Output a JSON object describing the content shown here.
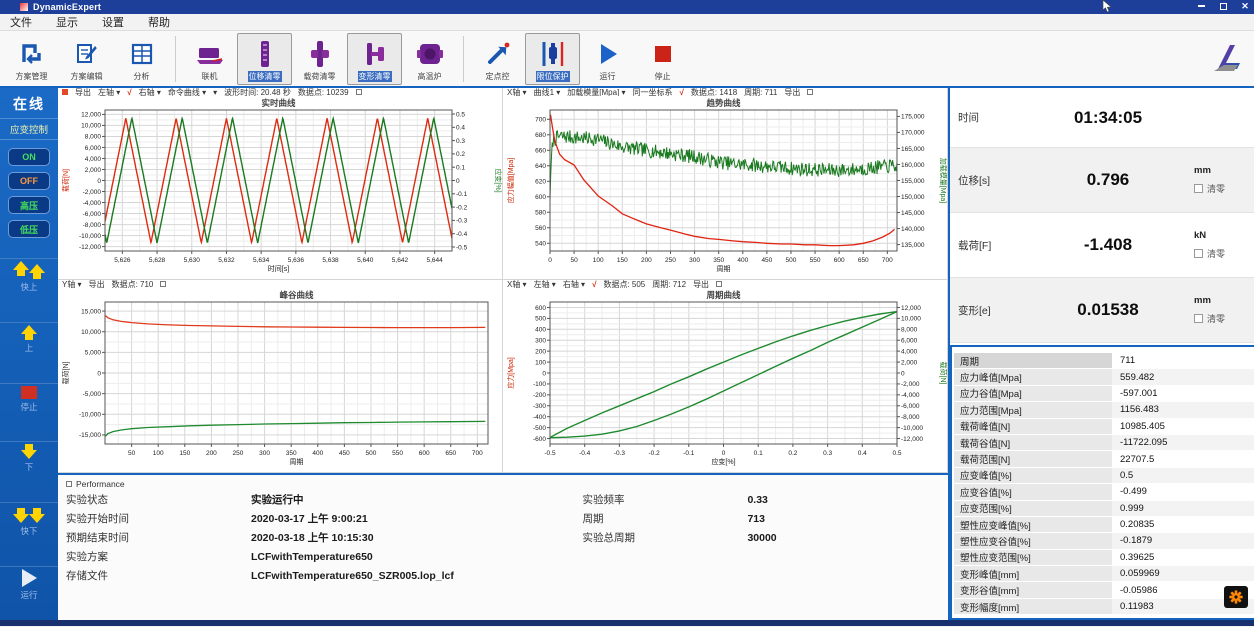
{
  "titlebar": {
    "app_title": "DynamicExpert"
  },
  "menubar": {
    "items": [
      {
        "name": "file",
        "label": "文件"
      },
      {
        "name": "display",
        "label": "显示"
      },
      {
        "name": "settings",
        "label": "设置"
      },
      {
        "name": "help",
        "label": "帮助"
      }
    ]
  },
  "toolbar": {
    "groups": [
      [
        {
          "name": "scheme-manage",
          "label": "方案管理",
          "selected": false
        },
        {
          "name": "scheme-edit",
          "label": "方案编辑",
          "selected": false
        },
        {
          "name": "analysis",
          "label": "分析",
          "selected": false
        }
      ],
      [
        {
          "name": "connect",
          "label": "联机",
          "selected": false
        },
        {
          "name": "displacement-zero",
          "label": "位移清零",
          "selected": true
        },
        {
          "name": "load-zero",
          "label": "载荷清零",
          "selected": false
        },
        {
          "name": "deform-zero",
          "label": "变形清零",
          "selected": true
        },
        {
          "name": "furnace",
          "label": "高温炉",
          "selected": false
        }
      ],
      [
        {
          "name": "setpoint-control",
          "label": "定点控",
          "selected": false
        },
        {
          "name": "limit-protection",
          "label": "限位保护",
          "selected": true
        },
        {
          "name": "run",
          "label": "运行",
          "selected": false
        },
        {
          "name": "stop",
          "label": "停止",
          "selected": false
        }
      ]
    ]
  },
  "sidebar": {
    "mode_label": "在线",
    "control_label": "应变控制",
    "buttons": [
      {
        "label": "ON",
        "color": "#45e05a"
      },
      {
        "label": "OFF",
        "color": "#ff9a3c"
      },
      {
        "label": "高压",
        "color": "#45e05a"
      },
      {
        "label": "低压",
        "color": "#45e05a"
      }
    ],
    "jogs": [
      {
        "name": "fast-up",
        "label": "快上"
      },
      {
        "name": "up",
        "label": "上"
      },
      {
        "name": "stop",
        "label": "停止"
      },
      {
        "name": "down",
        "label": "下"
      },
      {
        "name": "fast-down",
        "label": "快下"
      },
      {
        "name": "run",
        "label": "运行"
      }
    ]
  },
  "chart_data": [
    {
      "id": "realtime",
      "type": "line",
      "title": "实时曲线",
      "lead_square": true,
      "toolbar_parts": [
        "导出",
        "左轴 ▾",
        {
          "t": "√",
          "red": true
        },
        "右轴 ▾",
        "命令曲线 ▾",
        "▾",
        "波形时间: 20.48 秒",
        "数据点: 10239"
      ],
      "xlabel": "时间[s]",
      "x_min": 5625,
      "x_max": 5645,
      "x_step": 2,
      "x_tick_start": 5626,
      "left": {
        "label": "载荷[N]",
        "min": -12800,
        "max": 12800,
        "step": 2000,
        "tick_start": -12000,
        "color": "#cc2200"
      },
      "right": {
        "label": "应变[%]",
        "min": -0.53,
        "max": 0.53,
        "step": 0.1,
        "tick_start": -0.5,
        "color": "#1a7a1f"
      },
      "series": [
        {
          "name": "载荷",
          "axis": "left",
          "color": "#dd2b10",
          "width": 1.4,
          "gen": "triangle",
          "amplitude": 11300,
          "period": 2.9,
          "peak_x": 5626.2
        },
        {
          "name": "应变",
          "axis": "right",
          "color": "#1a7a1f",
          "width": 1.4,
          "gen": "triangle",
          "amplitude": 0.47,
          "period": 2.9,
          "peak_x": 5626.55
        }
      ]
    },
    {
      "id": "trend",
      "type": "line",
      "title": "趋势曲线",
      "lead_square": false,
      "toolbar_parts": [
        "X轴 ▾",
        "曲线1 ▾",
        "加载模量[Mpa] ▾",
        "同一坐标系",
        {
          "t": "√",
          "red": true
        },
        "数据点: 1418",
        "周期: 711",
        "导出"
      ],
      "xlabel": "周期",
      "x_min": 0,
      "x_max": 720,
      "x_step": 50,
      "x_tick_start": 0,
      "left": {
        "label": "应力幅值[Mpa]",
        "min": 530,
        "max": 712,
        "step": 20,
        "tick_start": 540,
        "color": "#cc2200"
      },
      "right": {
        "label": "加载模量[Mpa]",
        "min": 133000,
        "max": 177000,
        "step": 5000,
        "tick_start": 135000,
        "color": "#1a7a1f"
      },
      "series": [
        {
          "name": "加载模量",
          "axis": "right",
          "color": "#1a7a1f",
          "width": 1,
          "gen": "noisy",
          "noise": 2200,
          "seed": 7,
          "samples": 470,
          "points": [
            [
              0,
              150000
            ],
            [
              1,
              174500
            ],
            [
              2,
              137500
            ],
            [
              3,
              162000
            ],
            [
              6,
              167500
            ],
            [
              20,
              168800
            ],
            [
              60,
              168300
            ],
            [
              100,
              167900
            ],
            [
              120,
              166800
            ],
            [
              150,
              165500
            ],
            [
              180,
              164800
            ],
            [
              220,
              164000
            ],
            [
              260,
              163200
            ],
            [
              300,
              162400
            ],
            [
              340,
              161000
            ],
            [
              380,
              160200
            ],
            [
              420,
              159800
            ],
            [
              460,
              159300
            ],
            [
              500,
              158800
            ],
            [
              540,
              158400
            ],
            [
              580,
              158200
            ],
            [
              620,
              158300
            ],
            [
              660,
              158800
            ],
            [
              710,
              159600
            ]
          ]
        },
        {
          "name": "应力幅值",
          "axis": "left",
          "color": "#e02412",
          "width": 1.3,
          "points": [
            [
              1,
              706
            ],
            [
              5,
              690
            ],
            [
              10,
              672
            ],
            [
              20,
              655
            ],
            [
              30,
              648
            ],
            [
              50,
              641
            ],
            [
              70,
              622
            ],
            [
              100,
              601
            ],
            [
              130,
              588
            ],
            [
              150,
              578
            ],
            [
              180,
              570
            ],
            [
              200,
              565
            ],
            [
              230,
              560
            ],
            [
              250,
              557
            ],
            [
              280,
              552
            ],
            [
              300,
              549
            ],
            [
              330,
              546
            ],
            [
              350,
              545
            ],
            [
              380,
              543
            ],
            [
              400,
              542
            ],
            [
              430,
              541
            ],
            [
              450,
              540
            ],
            [
              480,
              539
            ],
            [
              500,
              539
            ],
            [
              530,
              538
            ],
            [
              550,
              538
            ],
            [
              580,
              537
            ],
            [
              600,
              537
            ],
            [
              630,
              538
            ],
            [
              650,
              540
            ],
            [
              670,
              543
            ],
            [
              690,
              548
            ],
            [
              705,
              553
            ],
            [
              715,
              558
            ]
          ]
        }
      ]
    },
    {
      "id": "peakvalley",
      "type": "line",
      "title": "峰谷曲线",
      "lead_square": false,
      "toolbar_parts": [
        "Y轴 ▾",
        "导出",
        "数据点: 710"
      ],
      "xlabel": "周期",
      "x_min": 0,
      "x_max": 720,
      "x_step": 50,
      "x_tick_start": 50,
      "left": {
        "label": "载荷[N]",
        "min": -17200,
        "max": 17200,
        "step": 5000,
        "tick_start": -15000,
        "color": "#333333"
      },
      "series": [
        {
          "name": "载荷峰值",
          "axis": "left",
          "color": "#e03a1a",
          "width": 1.3,
          "points": [
            [
              1,
              13900
            ],
            [
              5,
              13400
            ],
            [
              15,
              12900
            ],
            [
              30,
              12500
            ],
            [
              50,
              12200
            ],
            [
              80,
              11900
            ],
            [
              120,
              11650
            ],
            [
              160,
              11500
            ],
            [
              200,
              11400
            ],
            [
              250,
              11300
            ],
            [
              300,
              11200
            ],
            [
              350,
              11150
            ],
            [
              400,
              11100
            ],
            [
              450,
              11050
            ],
            [
              500,
              11020
            ],
            [
              550,
              11000
            ],
            [
              600,
              11000
            ],
            [
              650,
              11010
            ],
            [
              715,
              11050
            ]
          ]
        },
        {
          "name": "载荷谷值",
          "axis": "left",
          "color": "#1f8a2f",
          "width": 1.3,
          "points": [
            [
              1,
              -15300
            ],
            [
              5,
              -14700
            ],
            [
              15,
              -14200
            ],
            [
              30,
              -13800
            ],
            [
              50,
              -13500
            ],
            [
              80,
              -13200
            ],
            [
              120,
              -13000
            ],
            [
              160,
              -12800
            ],
            [
              200,
              -12650
            ],
            [
              250,
              -12500
            ],
            [
              300,
              -12350
            ],
            [
              350,
              -12250
            ],
            [
              400,
              -12150
            ],
            [
              450,
              -12050
            ],
            [
              500,
              -11980
            ],
            [
              550,
              -11900
            ],
            [
              600,
              -11850
            ],
            [
              650,
              -11800
            ],
            [
              715,
              -11720
            ]
          ]
        }
      ]
    },
    {
      "id": "cycle",
      "type": "line",
      "title": "周期曲线",
      "lead_square": false,
      "toolbar_parts": [
        "X轴 ▾",
        "左轴 ▾",
        "右轴 ▾",
        {
          "t": "√",
          "red": true
        },
        "数据点: 505",
        "周期: 712",
        "导出"
      ],
      "xlabel": "应变[%]",
      "x_min": -0.5,
      "x_max": 0.5,
      "x_step": 0.1,
      "x_tick_start": -0.5,
      "left": {
        "label": "应力[Mpa]",
        "min": -650,
        "max": 650,
        "step": 100,
        "tick_start": -600,
        "color": "#cc2200"
      },
      "right": {
        "label": "载荷[N]",
        "min": -13000,
        "max": 13000,
        "step": 2000,
        "tick_start": -12000,
        "color": "#1a7a1f"
      },
      "series": [
        {
          "name": "滞回环",
          "axis": "left",
          "color": "#1f8a2f",
          "width": 1.4,
          "points": [
            [
              -0.5,
              -590
            ],
            [
              -0.45,
              -505
            ],
            [
              -0.4,
              -435
            ],
            [
              -0.35,
              -365
            ],
            [
              -0.3,
              -300
            ],
            [
              -0.25,
              -235
            ],
            [
              -0.2,
              -170
            ],
            [
              -0.15,
              -100
            ],
            [
              -0.1,
              -35
            ],
            [
              -0.05,
              35
            ],
            [
              0,
              100
            ],
            [
              0.05,
              165
            ],
            [
              0.1,
              225
            ],
            [
              0.15,
              285
            ],
            [
              0.2,
              340
            ],
            [
              0.25,
              390
            ],
            [
              0.3,
              435
            ],
            [
              0.35,
              475
            ],
            [
              0.4,
              510
            ],
            [
              0.45,
              540
            ],
            [
              0.5,
              562
            ],
            [
              0.45,
              490
            ],
            [
              0.4,
              420
            ],
            [
              0.35,
              350
            ],
            [
              0.3,
              280
            ],
            [
              0.25,
              205
            ],
            [
              0.2,
              135
            ],
            [
              0.15,
              60
            ],
            [
              0.1,
              -15
            ],
            [
              0.05,
              -90
            ],
            [
              0,
              -165
            ],
            [
              -0.05,
              -240
            ],
            [
              -0.1,
              -310
            ],
            [
              -0.15,
              -375
            ],
            [
              -0.2,
              -435
            ],
            [
              -0.25,
              -490
            ],
            [
              -0.3,
              -530
            ],
            [
              -0.35,
              -560
            ],
            [
              -0.4,
              -578
            ],
            [
              -0.45,
              -588
            ],
            [
              -0.5,
              -592
            ]
          ]
        }
      ]
    }
  ],
  "bottom_panel": {
    "header": "Performance",
    "left_rows": [
      {
        "label": "实验状态",
        "value": "实验运行中"
      },
      {
        "label": "实验开始时间",
        "value": "2020-03-17 上午 9:00:21"
      },
      {
        "label": "预期结束时间",
        "value": "2020-03-18 上午 10:15:30"
      },
      {
        "label": "实验方案",
        "value": "LCFwithTemperature650"
      },
      {
        "label": "存储文件",
        "value": "LCFwithTemperature650_SZR005.lop_lcf"
      }
    ],
    "right_rows": [
      {
        "label": "实验频率",
        "value": "0.33"
      },
      {
        "label": "周期",
        "value": "713"
      },
      {
        "label": "实验总周期",
        "value": "30000"
      }
    ]
  },
  "right_panel": {
    "readouts": [
      {
        "label": "时间",
        "value": "01:34:05",
        "unit": "",
        "zero": false,
        "zero_label": ""
      },
      {
        "label": "位移[s]",
        "value": "0.796",
        "unit": "mm",
        "zero": true,
        "zero_label": "清零"
      },
      {
        "label": "载荷[F]",
        "value": "-1.408",
        "unit": "kN",
        "zero": true,
        "zero_label": "清零"
      },
      {
        "label": "变形[e]",
        "value": "0.01538",
        "unit": "mm",
        "zero": true,
        "zero_label": "清零"
      }
    ],
    "table_rows": [
      {
        "label": "周期",
        "value": "711"
      },
      {
        "label": "应力峰值[Mpa]",
        "value": "559.482"
      },
      {
        "label": "应力谷值[Mpa]",
        "value": "-597.001"
      },
      {
        "label": "应力范围[Mpa]",
        "value": "1156.483"
      },
      {
        "label": "载荷峰值[N]",
        "value": "10985.405"
      },
      {
        "label": "载荷谷值[N]",
        "value": "-11722.095"
      },
      {
        "label": "载荷范围[N]",
        "value": "22707.5"
      },
      {
        "label": "应变峰值[%]",
        "value": "0.5"
      },
      {
        "label": "应变谷值[%]",
        "value": "-0.499"
      },
      {
        "label": "应变范围[%]",
        "value": "0.999"
      },
      {
        "label": "塑性应变峰值[%]",
        "value": "0.20835"
      },
      {
        "label": "塑性应变谷值[%]",
        "value": "-0.1879"
      },
      {
        "label": "塑性应变范围[%]",
        "value": "0.39625"
      },
      {
        "label": "变形峰值[mm]",
        "value": "0.059969"
      },
      {
        "label": "变形谷值[mm]",
        "value": "-0.05986"
      },
      {
        "label": "变形幅度[mm]",
        "value": "0.11983"
      }
    ]
  },
  "colors": {
    "accent_blue": "#1565c0",
    "titlebar_blue": "#1e3f99",
    "red_series": "#dd2b10",
    "green_series": "#1a7a1f"
  }
}
